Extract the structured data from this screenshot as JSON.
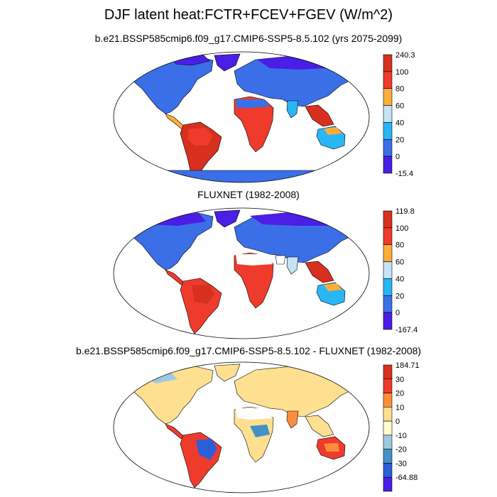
{
  "figure": {
    "title": "DJF latent heat:FCTR+FCEV+FGEV (W/m^2)",
    "colors": {
      "ocean": "#ffffff",
      "outline": "#000000"
    }
  },
  "panels": [
    {
      "title": "b.e21.BSSP585cmip6.f09_g17.CMIP6-SSP5-8.5.102 (yrs 2075-2099)",
      "colorbar": {
        "labels": [
          "240.3",
          "100",
          "80",
          "60",
          "40",
          "20",
          "0",
          "-15.4"
        ],
        "colors": [
          "#d7301f",
          "#ef3b2c",
          "#fdae3a",
          "#c6e2f5",
          "#29b6f6",
          "#3b6fe8",
          "#4b1ee6"
        ]
      }
    },
    {
      "title": "FLUXNET (1982-2008)",
      "colorbar": {
        "labels": [
          "119.8",
          "100",
          "80",
          "60",
          "40",
          "20",
          "0",
          "-167.4"
        ],
        "colors": [
          "#d7301f",
          "#ef3b2c",
          "#fdae3a",
          "#c6e2f5",
          "#29b6f6",
          "#3b6fe8",
          "#4b1ee6"
        ]
      }
    },
    {
      "title": "b.e21.BSSP585cmip6.f09_g17.CMIP6-SSP5-8.5.102 - FLUXNET (1982-2008)",
      "colorbar": {
        "labels": [
          "184.71",
          "30",
          "20",
          "10",
          "0",
          "-10",
          "-20",
          "-30",
          "-64.88"
        ],
        "colors": [
          "#d7301f",
          "#ef3b2c",
          "#fd8d3c",
          "#fee090",
          "#ffffcc",
          "#9ecae1",
          "#4292c6",
          "#2b5fd9",
          "#4b1ee6"
        ]
      }
    }
  ]
}
